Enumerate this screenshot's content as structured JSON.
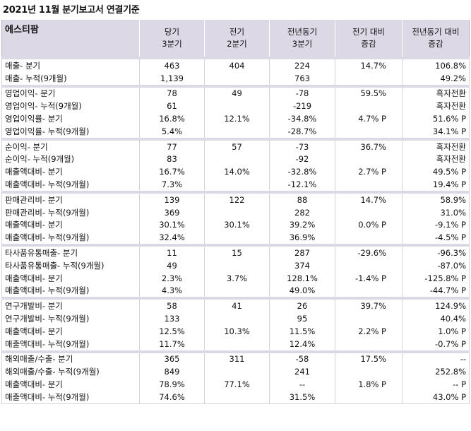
{
  "title": "2021년 11월 분기보고서 연결기준",
  "header": {
    "company": "에스티팜",
    "cols": [
      [
        "당기",
        "3분기"
      ],
      [
        "전기",
        "2분기"
      ],
      [
        "전년동기",
        "3분기"
      ],
      [
        "전기 대비",
        "증감"
      ],
      [
        "전년동기 대비",
        "증감"
      ]
    ]
  },
  "groups": [
    [
      [
        "매출- 분기",
        "463",
        "404",
        "224",
        "14.7%",
        "106.8%"
      ],
      [
        "매출- 누적(9개월)",
        "1,139",
        "",
        "763",
        "",
        "49.2%"
      ]
    ],
    [
      [
        "영업이익- 분기",
        "78",
        "49",
        "-78",
        "59.5%",
        "흑자전환"
      ],
      [
        "영업이익- 누적(9개월)",
        "61",
        "",
        "-219",
        "",
        "흑자전환"
      ],
      [
        "영업이익률- 분기",
        "16.8%",
        "12.1%",
        "-34.8%",
        "4.7% P",
        "51.6% P"
      ],
      [
        "영업이익률- 누적(9개월)",
        "5.4%",
        "",
        "-28.7%",
        "",
        "34.1% P"
      ]
    ],
    [
      [
        "순이익- 분기",
        "77",
        "57",
        "-73",
        "36.7%",
        "흑자전환"
      ],
      [
        "순이익- 누적(9개월)",
        "83",
        "",
        "-92",
        "",
        "흑자전환"
      ],
      [
        "매출액대비- 분기",
        "16.7%",
        "14.0%",
        "-32.8%",
        "2.7% P",
        "49.5% P"
      ],
      [
        "매출액대비- 누적(9개월)",
        "7.3%",
        "",
        "-12.1%",
        "",
        "19.4% P"
      ]
    ],
    [
      [
        "판매관리비- 분기",
        "139",
        "122",
        "88",
        "14.7%",
        "58.9%"
      ],
      [
        "판매관리비- 누적(9개월)",
        "369",
        "",
        "282",
        "",
        "31.0%"
      ],
      [
        "매출액대비- 분기",
        "30.1%",
        "30.1%",
        "39.2%",
        "0.0% P",
        "-9.1% P"
      ],
      [
        "매출액대비- 누적(9개월)",
        "32.4%",
        "",
        "36.9%",
        "",
        "-4.5% P"
      ]
    ],
    [
      [
        "타사품유통매출- 분기",
        "11",
        "15",
        "287",
        "-29.6%",
        "-96.3%"
      ],
      [
        "타사품유통매출- 누적(9개월)",
        "49",
        "",
        "374",
        "",
        "-87.0%"
      ],
      [
        "매출액대비- 분기",
        "2.3%",
        "3.7%",
        "128.1%",
        "-1.4% P",
        "-125.8% P"
      ],
      [
        "매출액대비- 누적(9개월)",
        "4.3%",
        "",
        "49.0%",
        "",
        "-44.7% P"
      ]
    ],
    [
      [
        "연구개발비- 분기",
        "58",
        "41",
        "26",
        "39.7%",
        "124.9%"
      ],
      [
        "연구개발비- 누적(9개월)",
        "133",
        "",
        "95",
        "",
        "40.4%"
      ],
      [
        "매출액대비- 분기",
        "12.5%",
        "10.3%",
        "11.5%",
        "2.2% P",
        "1.0% P"
      ],
      [
        "매출액대비- 누적(9개월)",
        "11.7%",
        "",
        "12.4%",
        "",
        "-0.7% P"
      ]
    ],
    [
      [
        "해외매출/수출- 분기",
        "365",
        "311",
        "-58",
        "17.5%",
        "--"
      ],
      [
        "해외매출/수출- 누적(9개월)",
        "849",
        "",
        "241",
        "",
        "252.8%"
      ],
      [
        "매출액대비- 분기",
        "78.9%",
        "77.1%",
        "--",
        "1.8% P",
        "-- P"
      ],
      [
        "매출액대비- 누적(9개월)",
        "74.6%",
        "",
        "31.5%",
        "",
        "43.0% P"
      ]
    ]
  ]
}
